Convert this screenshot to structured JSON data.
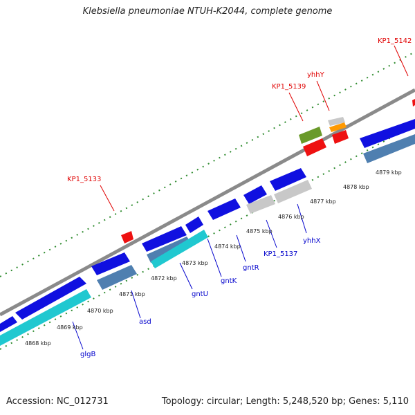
{
  "map": {
    "title": "Klebsiella pneumoniae NTUH-K2044, complete genome",
    "accession": "Accession: NC_012731",
    "topology": "Topology: circular; Length: 5,248,520 bp; Genes: 5,110"
  },
  "colors": {
    "backbone": "#8a8a8a",
    "tick": "#2e8b2e",
    "forward_gene": "#1010e0",
    "reverse_teal": "#20c8d0",
    "reverse_steel": "#4f7fb0",
    "gray_gene": "#c8c8c8",
    "red_gene": "#ee1111",
    "olive_gene": "#6a9a2a",
    "orange_gene": "#ff9900",
    "label_red": "#e00000",
    "label_blue": "#0000cc"
  },
  "scale": {
    "ticks": [
      "4868 kbp",
      "4869 kbp",
      "4870 kbp",
      "4871 kbp",
      "4872 kbp",
      "4873 kbp",
      "4874 kbp",
      "4875 kbp",
      "4876 kbp",
      "4877 kbp",
      "4878 kbp",
      "4879 kbp"
    ]
  },
  "labels": {
    "top": [
      "KP1_5133",
      "KP1_5139",
      "yhhY",
      "KP1_5142"
    ],
    "bottom": [
      "glgB",
      "asd",
      "gntU",
      "gntK",
      "gntR",
      "KP1_5137",
      "yhhX"
    ]
  }
}
